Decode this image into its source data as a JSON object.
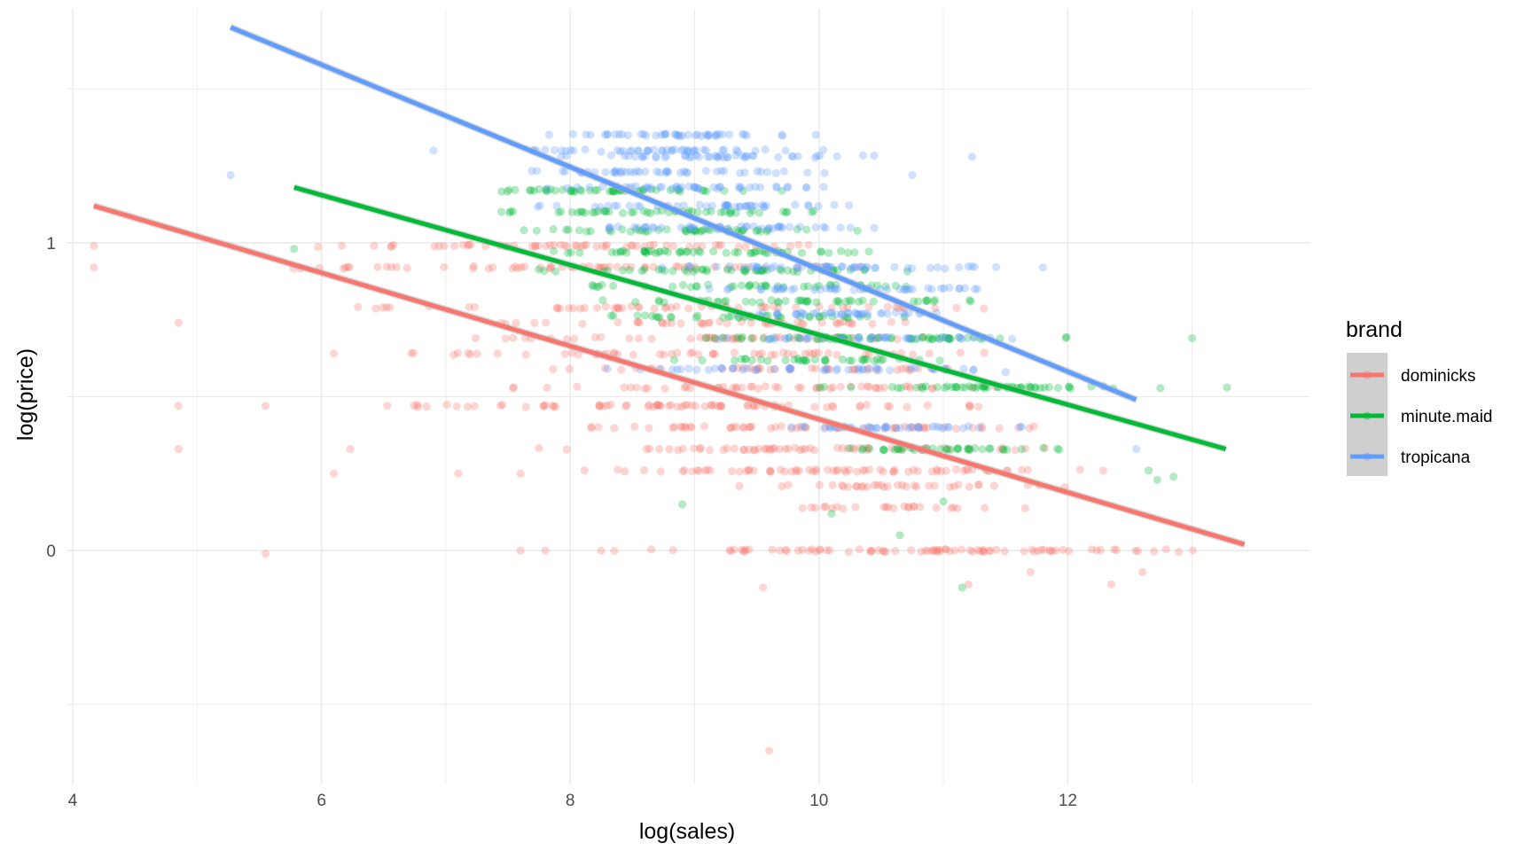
{
  "chart_data": {
    "type": "scatter",
    "title": "",
    "xlabel": "log(sales)",
    "ylabel": "log(price)",
    "xlim": [
      3.95,
      13.95
    ],
    "ylim": [
      -0.76,
      1.76
    ],
    "x_ticks": [
      {
        "value": 4,
        "label": "4"
      },
      {
        "value": 6,
        "label": "6"
      },
      {
        "value": 8,
        "label": "8"
      },
      {
        "value": 10,
        "label": "10"
      },
      {
        "value": 12,
        "label": "12"
      }
    ],
    "y_ticks": [
      {
        "value": 0,
        "label": "0"
      },
      {
        "value": 1,
        "label": "1"
      }
    ],
    "grid": true,
    "legend_position": "right",
    "legend_title": "brand",
    "point_alpha": 0.3,
    "series": [
      {
        "name": "dominicks",
        "color": "#F8766D",
        "fit_line": {
          "x": [
            4.17,
            13.42
          ],
          "y": [
            1.12,
            0.02
          ]
        },
        "levels": [
          {
            "y": 0.99,
            "x_range": [
              5.3,
              10.5
            ],
            "count": 60
          },
          {
            "y": 0.92,
            "x_range": [
              5.3,
              10.8
            ],
            "count": 60
          },
          {
            "y": 0.79,
            "x_range": [
              5.9,
              11.6
            ],
            "count": 55
          },
          {
            "y": 0.74,
            "x_range": [
              6.7,
              11.3
            ],
            "count": 45
          },
          {
            "y": 0.69,
            "x_range": [
              6.9,
              11.5
            ],
            "count": 45
          },
          {
            "y": 0.64,
            "x_range": [
              6.6,
              11.7
            ],
            "count": 55
          },
          {
            "y": 0.59,
            "x_range": [
              7.5,
              11.5
            ],
            "count": 40
          },
          {
            "y": 0.53,
            "x_range": [
              7.2,
              11.9
            ],
            "count": 50
          },
          {
            "y": 0.47,
            "x_range": [
              6.1,
              11.8
            ],
            "count": 75
          },
          {
            "y": 0.4,
            "x_range": [
              7.5,
              12.1
            ],
            "count": 60
          },
          {
            "y": 0.33,
            "x_range": [
              7.4,
              12.2
            ],
            "count": 60
          },
          {
            "y": 0.26,
            "x_range": [
              7.7,
              12.5
            ],
            "count": 70
          },
          {
            "y": 0.21,
            "x_range": [
              9.2,
              12.1
            ],
            "count": 35
          },
          {
            "y": 0.14,
            "x_range": [
              9.6,
              12.0
            ],
            "count": 25
          },
          {
            "y": 0.0,
            "x_range": [
              8.0,
              13.4
            ],
            "count": 85
          }
        ],
        "points": [
          {
            "x": 4.17,
            "y": 0.99
          },
          {
            "x": 4.17,
            "y": 0.92
          },
          {
            "x": 4.85,
            "y": 0.74
          },
          {
            "x": 4.85,
            "y": 0.47
          },
          {
            "x": 4.85,
            "y": 0.33
          },
          {
            "x": 5.55,
            "y": 0.47
          },
          {
            "x": 5.55,
            "y": -0.01
          },
          {
            "x": 6.1,
            "y": 0.64
          },
          {
            "x": 6.1,
            "y": 0.25
          },
          {
            "x": 6.23,
            "y": 0.33
          },
          {
            "x": 7.1,
            "y": 0.25
          },
          {
            "x": 7.6,
            "y": 0.0
          },
          {
            "x": 7.6,
            "y": 0.25
          },
          {
            "x": 7.8,
            "y": 0.0
          },
          {
            "x": 9.6,
            "y": -0.65
          },
          {
            "x": 9.55,
            "y": -0.12
          },
          {
            "x": 11.2,
            "y": -0.11
          },
          {
            "x": 12.35,
            "y": -0.11
          },
          {
            "x": 12.6,
            "y": -0.07
          },
          {
            "x": 11.7,
            "y": -0.07
          }
        ]
      },
      {
        "name": "minute.maid",
        "color": "#00BA38",
        "fit_line": {
          "x": [
            5.78,
            13.27
          ],
          "y": [
            1.18,
            0.33
          ]
        },
        "levels": [
          {
            "y": 1.17,
            "x_range": [
              7.0,
              9.8
            ],
            "count": 50
          },
          {
            "y": 1.1,
            "x_range": [
              7.3,
              10.1
            ],
            "count": 50
          },
          {
            "y": 1.04,
            "x_range": [
              7.5,
              10.4
            ],
            "count": 50
          },
          {
            "y": 0.97,
            "x_range": [
              7.6,
              10.9
            ],
            "count": 55
          },
          {
            "y": 0.91,
            "x_range": [
              7.5,
              11.3
            ],
            "count": 50
          },
          {
            "y": 0.86,
            "x_range": [
              7.9,
              11.0
            ],
            "count": 40
          },
          {
            "y": 0.81,
            "x_range": [
              8.0,
              11.4
            ],
            "count": 45
          },
          {
            "y": 0.76,
            "x_range": [
              8.0,
              11.0
            ],
            "count": 40
          },
          {
            "y": 0.69,
            "x_range": [
              8.7,
              12.3
            ],
            "count": 60
          },
          {
            "y": 0.62,
            "x_range": [
              8.8,
              11.2
            ],
            "count": 35
          },
          {
            "y": 0.53,
            "x_range": [
              9.8,
              12.9
            ],
            "count": 55
          },
          {
            "y": 0.33,
            "x_range": [
              10.0,
              12.3
            ],
            "count": 40
          }
        ],
        "points": [
          {
            "x": 5.78,
            "y": 0.98
          },
          {
            "x": 8.9,
            "y": 0.15
          },
          {
            "x": 10.1,
            "y": 0.12
          },
          {
            "x": 10.65,
            "y": 0.05
          },
          {
            "x": 11.0,
            "y": 0.16
          },
          {
            "x": 11.15,
            "y": -0.12
          },
          {
            "x": 12.65,
            "y": 0.26
          },
          {
            "x": 12.85,
            "y": 0.24
          },
          {
            "x": 13.0,
            "y": 0.69
          },
          {
            "x": 13.28,
            "y": 0.53
          },
          {
            "x": 12.72,
            "y": 0.23
          }
        ]
      },
      {
        "name": "tropicana",
        "color": "#619CFF",
        "fit_line": {
          "x": [
            5.27,
            12.55
          ],
          "y": [
            1.7,
            0.49
          ]
        },
        "levels": [
          {
            "y": 1.35,
            "x_range": [
              7.6,
              10.0
            ],
            "count": 45
          },
          {
            "y": 1.3,
            "x_range": [
              7.3,
              10.1
            ],
            "count": 45
          },
          {
            "y": 1.28,
            "x_range": [
              7.9,
              10.5
            ],
            "count": 45
          },
          {
            "y": 1.23,
            "x_range": [
              7.4,
              10.3
            ],
            "count": 45
          },
          {
            "y": 1.18,
            "x_range": [
              7.6,
              10.4
            ],
            "count": 45
          },
          {
            "y": 1.12,
            "x_range": [
              7.7,
              10.5
            ],
            "count": 45
          },
          {
            "y": 1.05,
            "x_range": [
              7.8,
              10.8
            ],
            "count": 45
          },
          {
            "y": 0.92,
            "x_range": [
              8.5,
              11.6
            ],
            "count": 50
          },
          {
            "y": 0.85,
            "x_range": [
              8.8,
              11.5
            ],
            "count": 45
          },
          {
            "y": 0.77,
            "x_range": [
              9.1,
              11.3
            ],
            "count": 40
          },
          {
            "y": 0.69,
            "x_range": [
              9.0,
              11.9
            ],
            "count": 45
          },
          {
            "y": 0.59,
            "x_range": [
              8.0,
              11.8
            ],
            "count": 50
          },
          {
            "y": 0.4,
            "x_range": [
              9.5,
              11.9
            ],
            "count": 40
          }
        ],
        "points": [
          {
            "x": 5.27,
            "y": 1.22
          },
          {
            "x": 6.9,
            "y": 1.3
          },
          {
            "x": 7.7,
            "y": 1.3
          },
          {
            "x": 11.23,
            "y": 1.28
          },
          {
            "x": 10.75,
            "y": 1.22
          },
          {
            "x": 11.8,
            "y": 0.92
          },
          {
            "x": 12.55,
            "y": 0.33
          },
          {
            "x": 11.5,
            "y": 0.58
          }
        ]
      }
    ]
  }
}
